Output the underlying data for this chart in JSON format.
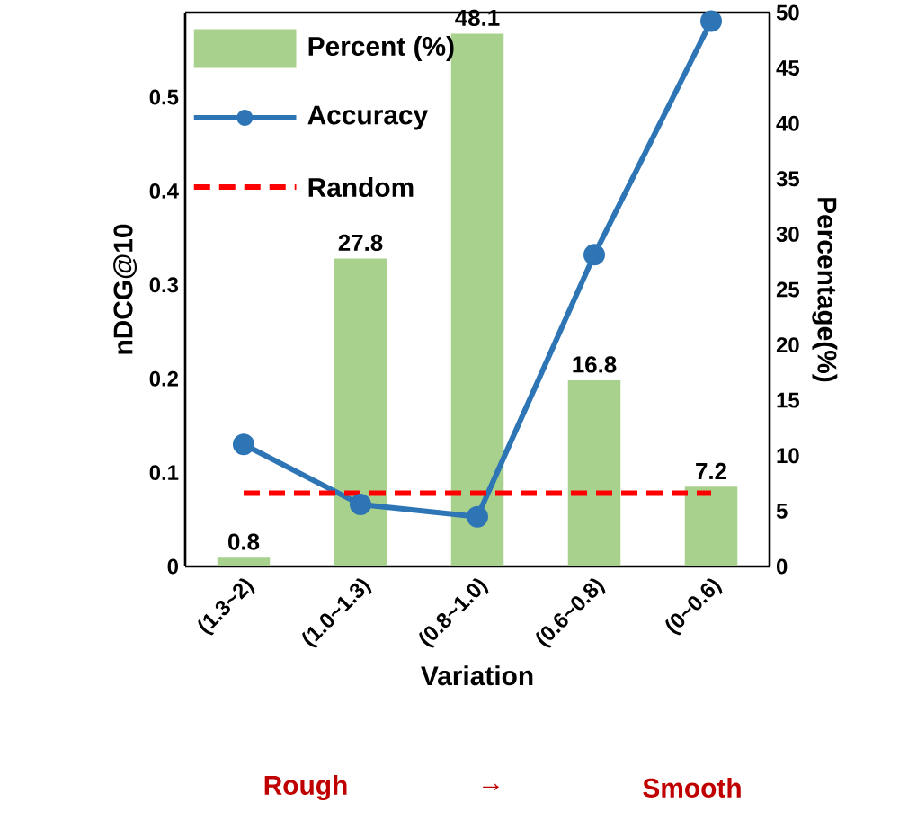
{
  "chart_data": {
    "type": "bar",
    "categories": [
      "(1.3~2)",
      "(1.0~1.3)",
      "(0.8~1.0)",
      "(0.6~0.8)",
      "(0~0.6)"
    ],
    "series": [
      {
        "name": "Percent (%)",
        "axis": "y2",
        "color": "#a9d18e",
        "values": [
          0.8,
          27.8,
          48.1,
          16.8,
          7.2
        ],
        "value_labels": [
          "0.8",
          "27.8",
          "48.1",
          "16.8",
          "7.2"
        ]
      },
      {
        "name": "Accuracy",
        "type": "line",
        "color": "#2e75b6",
        "marker": "circle",
        "values": [
          0.13,
          0.066,
          0.053,
          0.332,
          0.581
        ]
      }
    ],
    "ref_lines": [
      {
        "axis": "y",
        "value": 0.078,
        "label": "Random",
        "color": "#ff0000",
        "line_style": "dashed"
      }
    ],
    "xlabel": "Variation",
    "ylabel": "nDCG@10",
    "y2label": "Percentage(%)",
    "ylim": [
      0,
      0.59
    ],
    "yticks": [
      0,
      0.1,
      0.2,
      0.3,
      0.4,
      0.5
    ],
    "y2lim": [
      0,
      50
    ],
    "y2ticks": [
      0,
      5,
      10,
      15,
      20,
      25,
      30,
      35,
      40,
      45,
      50
    ],
    "legend": "top left",
    "annotations": [
      "Rough",
      "→",
      "Smooth"
    ]
  }
}
